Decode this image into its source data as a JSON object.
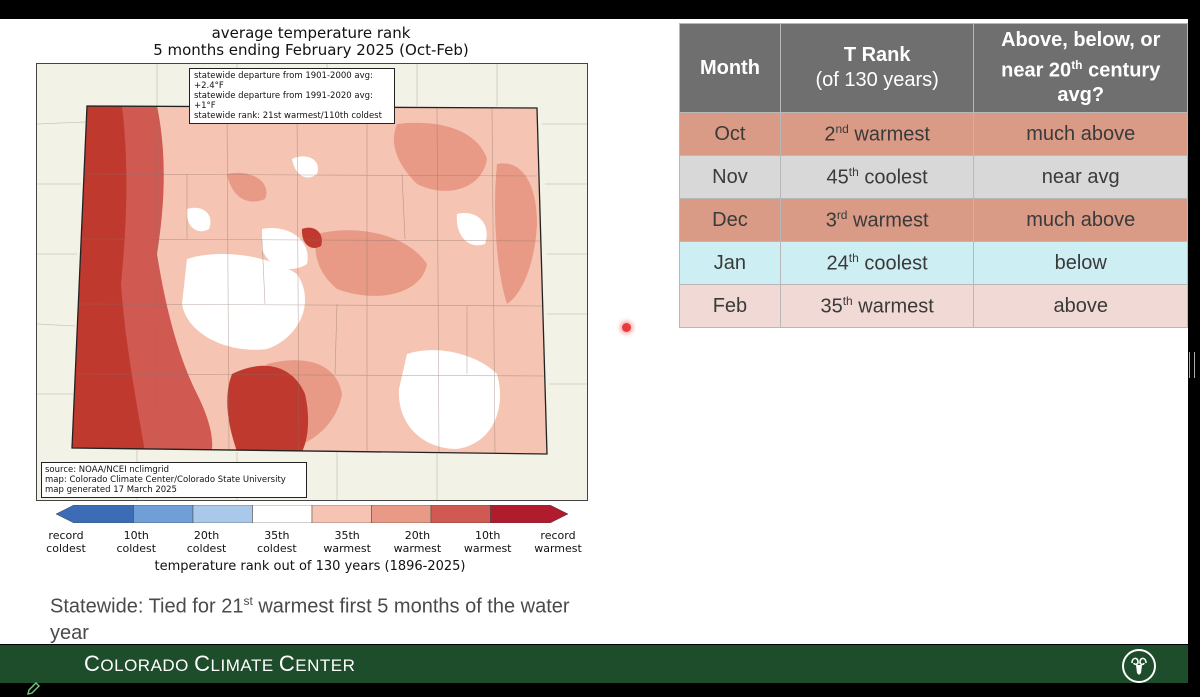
{
  "map": {
    "title_line1": "average temperature rank",
    "title_line2": "5 months ending February 2025 (Oct-Feb)",
    "info_lines": [
      "statewide departure from 1901-2000 avg: +2.4°F",
      "statewide departure from 1991-2020 avg: +1°F",
      "statewide rank: 21st warmest/110th coldest"
    ],
    "source_lines": [
      "source: NOAA/NCEI nclimgrid",
      "map: Colorado Climate Center/Colorado State University",
      "map generated 17 March 2025"
    ],
    "colorbar": {
      "colors": [
        "#3b6cb5",
        "#6f9fd6",
        "#a9c8ea",
        "#ffffff",
        "#f5c4b2",
        "#e89a86",
        "#d05a52",
        "#b01c2e"
      ],
      "labels": [
        [
          "record",
          "coldest"
        ],
        [
          "10th",
          "coldest"
        ],
        [
          "20th",
          "coldest"
        ],
        [
          "35th",
          "coldest"
        ],
        [
          "35th",
          "warmest"
        ],
        [
          "20th",
          "warmest"
        ],
        [
          "10th",
          "warmest"
        ],
        [
          "record",
          "warmest"
        ]
      ],
      "caption": "temperature rank out of 130 years (1896-2025)"
    }
  },
  "statewide": {
    "prefix": "Statewide: Tied for 21",
    "sup": "st",
    "suffix": " warmest first 5 months of the water year"
  },
  "table": {
    "headers": [
      [
        "Month"
      ],
      [
        "T Rank",
        "(of 130 years)"
      ],
      [
        "Above, below, or",
        "near 20",
        "th",
        " century",
        "avg?"
      ]
    ],
    "rows": [
      {
        "month": "Oct",
        "num": "2",
        "sup": "nd",
        "word": " warmest",
        "status": "much above",
        "color": "#d99a86"
      },
      {
        "month": "Nov",
        "num": "45",
        "sup": "th",
        "word": " coolest",
        "status": "near avg",
        "color": "#d8d8d8"
      },
      {
        "month": "Dec",
        "num": "3",
        "sup": "rd",
        "word": " warmest",
        "status": "much above",
        "color": "#d99a86"
      },
      {
        "month": "Jan",
        "num": "24",
        "sup": "th",
        "word": " coolest",
        "status": "below",
        "color": "#cdeef2"
      },
      {
        "month": "Feb",
        "num": "35",
        "sup": "th",
        "word": " warmest",
        "status": "above",
        "color": "#f1d9d5"
      }
    ]
  },
  "footer": {
    "title_c1": "C",
    "title_r1": "OLORADO ",
    "title_c2": "C",
    "title_r2": "LIMATE ",
    "title_c3": "C",
    "title_r3": "ENTER",
    "logo_icon": "csu-ram-logo-icon"
  },
  "colors": {
    "footer_green": "#1e4d2b",
    "header_gray": "#6f6f6f"
  }
}
